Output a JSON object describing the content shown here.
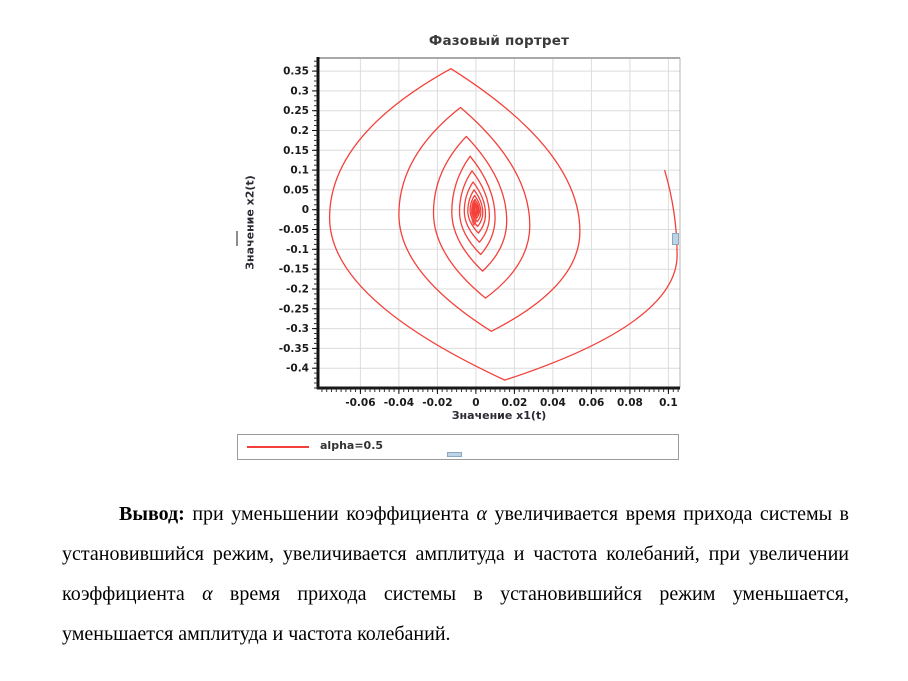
{
  "chart_data": {
    "type": "line",
    "title": "Фазовый портрет",
    "xlabel": "Значение x1(t)",
    "ylabel": "Значение x2(t)",
    "xlim": [
      -0.082,
      0.106
    ],
    "ylim": [
      -0.45,
      0.383
    ],
    "x_ticks": [
      -0.06,
      -0.04,
      -0.02,
      0,
      0.02,
      0.04,
      0.06,
      0.08,
      0.1
    ],
    "x_tick_labels": [
      "-0.06",
      "-0.04",
      "-0.02",
      "0",
      "0.02",
      "0.04",
      "0.06",
      "0.08",
      "0.1"
    ],
    "y_ticks": [
      0.35,
      0.3,
      0.25,
      0.2,
      0.15,
      0.1,
      0.05,
      0,
      -0.05,
      -0.1,
      -0.15,
      -0.2,
      -0.25,
      -0.3,
      -0.35,
      -0.4
    ],
    "y_tick_labels": [
      "0.35",
      "0.3",
      "0.25",
      "0.2",
      "0.15",
      "0.1",
      "0.05",
      "0",
      "-0.05",
      "-0.1",
      "-0.15",
      "-0.2",
      "-0.25",
      "-0.3",
      "-0.35",
      "-0.4"
    ],
    "x_minor_step": 0.0025,
    "y_minor_step": 0.0125,
    "grid": true,
    "grid_color": "#dcdcdc",
    "legend_position": "bottom",
    "series": [
      {
        "name": "alpha=0.5",
        "color": "#f4403a",
        "description": "Damped phase trajectory spiraling inward from (0.098, 0.1) toward the origin; successive quarter-turn extremes (lens-shaped loops, sharp tips top/bottom).",
        "spiral_extremes": [
          [
            0.098,
            0.1,
            "t"
          ],
          [
            0.1045,
            -0.115,
            "s"
          ],
          [
            0.015,
            -0.43,
            "t"
          ],
          [
            -0.076,
            -0.02,
            "s"
          ],
          [
            -0.013,
            0.356,
            "t"
          ],
          [
            0.054,
            -0.055,
            "s"
          ],
          [
            0.008,
            -0.307,
            "t"
          ],
          [
            -0.04,
            -0.012,
            "s"
          ],
          [
            -0.008,
            0.258,
            "t"
          ],
          [
            0.028,
            -0.04,
            "s"
          ],
          [
            0.005,
            -0.223,
            "t"
          ],
          [
            -0.022,
            -0.008,
            "s"
          ],
          [
            -0.005,
            0.185,
            "t"
          ],
          [
            0.016,
            -0.028,
            "s"
          ],
          [
            0.0035,
            -0.155,
            "t"
          ],
          [
            -0.0125,
            -0.006,
            "s"
          ],
          [
            -0.003,
            0.135,
            "t"
          ],
          [
            0.01,
            -0.02,
            "s"
          ],
          [
            0.0025,
            -0.113,
            "t"
          ],
          [
            -0.0085,
            -0.005,
            "s"
          ],
          [
            -0.002,
            0.098,
            "t"
          ],
          [
            0.007,
            -0.015,
            "s"
          ],
          [
            0.0018,
            -0.082,
            "t"
          ],
          [
            -0.006,
            -0.004,
            "s"
          ],
          [
            -0.0015,
            0.07,
            "t"
          ],
          [
            0.005,
            -0.011,
            "s"
          ],
          [
            0.0013,
            -0.059,
            "t"
          ],
          [
            -0.0042,
            -0.003,
            "s"
          ],
          [
            -0.001,
            0.05,
            "t"
          ],
          [
            0.0036,
            -0.008,
            "s"
          ],
          [
            0.0009,
            -0.042,
            "t"
          ],
          [
            -0.003,
            -0.002,
            "s"
          ],
          [
            -0.0007,
            0.036,
            "t"
          ],
          [
            0.0026,
            -0.006,
            "s"
          ],
          [
            0.0007,
            -0.03,
            "t"
          ],
          [
            -0.0021,
            -0.002,
            "s"
          ],
          [
            -0.0005,
            0.026,
            "t"
          ],
          [
            0.0018,
            -0.004,
            "s"
          ],
          [
            0.0005,
            -0.021,
            "t"
          ],
          [
            -0.0015,
            -0.001,
            "s"
          ],
          [
            -0.0004,
            0.018,
            "t"
          ],
          [
            0.0013,
            -0.003,
            "s"
          ],
          [
            0.0003,
            -0.015,
            "t"
          ],
          [
            -0.001,
            -0.001,
            "s"
          ],
          [
            -0.0002,
            0.013,
            "t"
          ],
          [
            0.0009,
            -0.002,
            "s"
          ],
          [
            0.0002,
            -0.01,
            "t"
          ],
          [
            -0.0007,
            0.0,
            "s"
          ],
          [
            -0.0002,
            0.009,
            "t"
          ],
          [
            0.0006,
            -0.001,
            "s"
          ],
          [
            0.0001,
            -0.007,
            "t"
          ]
        ],
        "focus_point": [
          -0.001,
          -0.008
        ]
      }
    ]
  },
  "paragraph": {
    "segments": [
      {
        "text": "Вывод: ",
        "bold": true
      },
      {
        "text": "при уменьшении коэффициента "
      },
      {
        "text": "α",
        "italic": true
      },
      {
        "text": " увеличивается время прихода системы в установившийся режим, увеличивается амплитуда и частота колебаний, при увеличении коэффициента "
      },
      {
        "text": "α",
        "italic": true
      },
      {
        "text": " время прихода системы в установившийся режим уменьшается, уменьшается амплитуда и частота колебаний."
      }
    ]
  }
}
